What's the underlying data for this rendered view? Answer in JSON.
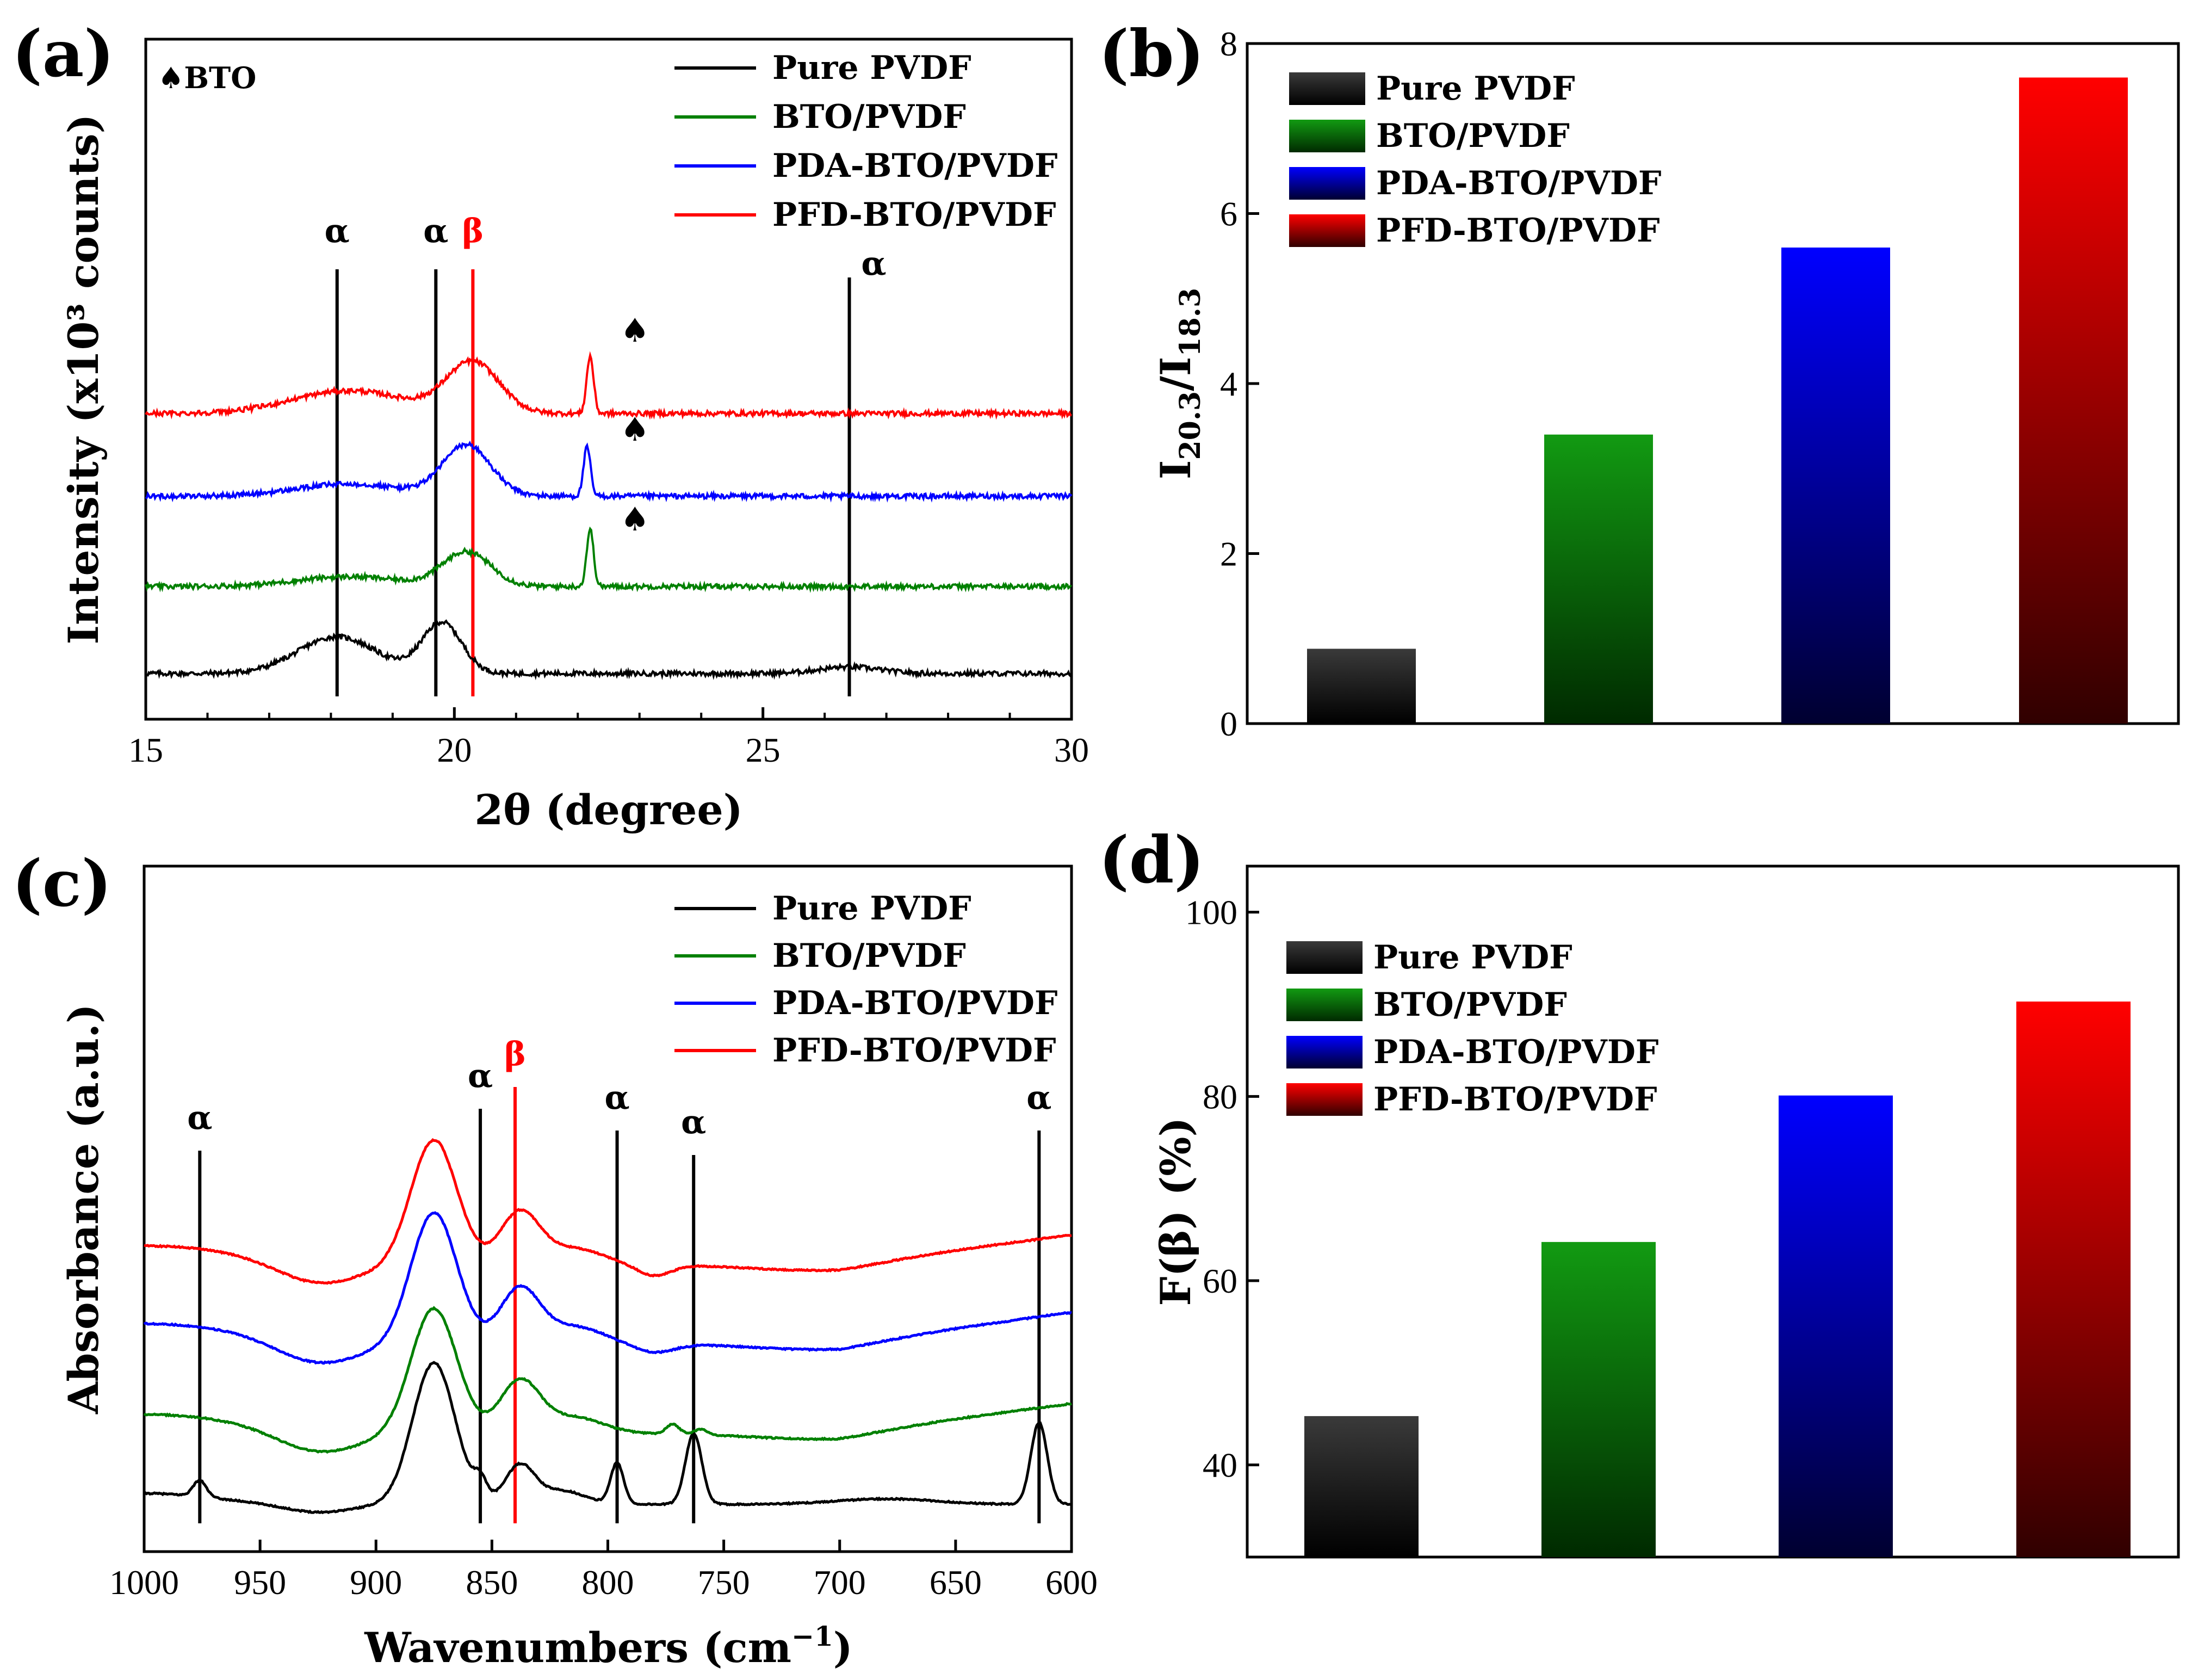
{
  "colors": {
    "pure": "#000000",
    "bto": "#008000",
    "pda": "#0000ff",
    "pfd": "#ff0000",
    "marker_alpha": "#000000",
    "marker_beta": "#ff0000"
  },
  "chart_data": [
    {
      "id": "a",
      "panel_label": "(a)",
      "type": "line",
      "xlabel": "2θ (degree)",
      "ylabel": "Intensity (x10³ counts)",
      "xlim": [
        15,
        30
      ],
      "xticks": [
        15,
        20,
        25,
        30
      ],
      "annotation_note": "♠BTO",
      "series": [
        {
          "name": "Pure PVDF",
          "color": "#000000",
          "baseline": 0.0,
          "peaks": [
            [
              18.1,
              0.45,
              0.9
            ],
            [
              19.8,
              0.62,
              0.45
            ],
            [
              26.4,
              0.08,
              0.7
            ]
          ]
        },
        {
          "name": "BTO/PVDF",
          "color": "#008000",
          "baseline": 1.0,
          "peaks": [
            [
              18.3,
              0.12,
              1.2
            ],
            [
              20.2,
              0.42,
              0.55
            ],
            [
              22.2,
              0.7,
              0.08
            ]
          ]
        },
        {
          "name": "PDA-BTO/PVDF",
          "color": "#0000ff",
          "baseline": 2.05,
          "peaks": [
            [
              18.3,
              0.15,
              1.2
            ],
            [
              20.2,
              0.62,
              0.55
            ],
            [
              22.15,
              0.6,
              0.08
            ]
          ]
        },
        {
          "name": "PFD-BTO/PVDF",
          "color": "#ff0000",
          "baseline": 3.05,
          "peaks": [
            [
              18.3,
              0.28,
              1.3
            ],
            [
              20.3,
              0.62,
              0.6
            ],
            [
              22.2,
              0.7,
              0.08
            ]
          ]
        }
      ],
      "marker_lines": [
        {
          "x": 18.1,
          "label": "α",
          "color": "#000000"
        },
        {
          "x": 19.7,
          "label": "α",
          "color": "#000000"
        },
        {
          "x": 20.3,
          "label": "β",
          "color": "#ff0000"
        },
        {
          "x": 26.4,
          "label": "α",
          "color": "#000000"
        }
      ],
      "spade_marks": [
        {
          "x": 22.6,
          "series": "PFD-BTO/PVDF",
          "label": "♠"
        },
        {
          "x": 22.6,
          "series": "PDA-BTO/PVDF",
          "label": "♠"
        },
        {
          "x": 22.6,
          "series": "BTO/PVDF",
          "label": "♠"
        }
      ],
      "legend": [
        "Pure PVDF",
        "BTO/PVDF",
        "PDA-BTO/PVDF",
        "PFD-BTO/PVDF"
      ]
    },
    {
      "id": "b",
      "panel_label": "(b)",
      "type": "bar",
      "ylabel_main": "I",
      "ylabel_sub1": "20.3",
      "ylabel_slash": "/I",
      "ylabel_sub2": "18.3",
      "ylim": [
        0,
        8
      ],
      "yticks": [
        0,
        2,
        4,
        6,
        8
      ],
      "categories": [
        "Pure PVDF",
        "BTO/PVDF",
        "PDA-BTO/PVDF",
        "PFD-BTO/PVDF"
      ],
      "values": [
        0.88,
        3.4,
        5.6,
        7.6
      ],
      "legend": [
        "Pure PVDF",
        "BTO/PVDF",
        "PDA-BTO/PVDF",
        "PFD-BTO/PVDF"
      ]
    },
    {
      "id": "c",
      "panel_label": "(c)",
      "type": "line",
      "xlabel": "Wavenumbers (cm",
      "xlabel_sup": "−1",
      "xlabel_end": ")",
      "ylabel": "Absorbance (a.u.)",
      "xlim": [
        1000,
        600
      ],
      "xticks": [
        1000,
        950,
        900,
        850,
        800,
        750,
        700,
        650,
        600
      ],
      "series": [
        {
          "name": "Pure PVDF",
          "color": "#000000",
          "baseline": 0.0
        },
        {
          "name": "BTO/PVDF",
          "color": "#008000",
          "baseline": 1.0
        },
        {
          "name": "PDA-BTO/PVDF",
          "color": "#0000ff",
          "baseline": 2.0
        },
        {
          "name": "PFD-BTO/PVDF",
          "color": "#ff0000",
          "baseline": 3.0
        }
      ],
      "marker_lines": [
        {
          "x": 976,
          "label": "α",
          "color": "#000000"
        },
        {
          "x": 855,
          "label": "α",
          "color": "#000000"
        },
        {
          "x": 840,
          "label": "β",
          "color": "#ff0000"
        },
        {
          "x": 796,
          "label": "α",
          "color": "#000000"
        },
        {
          "x": 763,
          "label": "α",
          "color": "#000000"
        },
        {
          "x": 614,
          "label": "α",
          "color": "#000000"
        }
      ],
      "legend": [
        "Pure PVDF",
        "BTO/PVDF",
        "PDA-BTO/PVDF",
        "PFD-BTO/PVDF"
      ]
    },
    {
      "id": "d",
      "panel_label": "(d)",
      "type": "bar",
      "ylabel": "F(β) (%)",
      "ylim": [
        30,
        105
      ],
      "yticks": [
        40,
        60,
        80,
        100
      ],
      "categories": [
        "Pure PVDF",
        "BTO/PVDF",
        "PDA-BTO/PVDF",
        "PFD-BTO/PVDF"
      ],
      "values": [
        45.3,
        64.2,
        80.1,
        90.3
      ],
      "legend": [
        "Pure PVDF",
        "BTO/PVDF",
        "PDA-BTO/PVDF",
        "PFD-BTO/PVDF"
      ]
    }
  ]
}
